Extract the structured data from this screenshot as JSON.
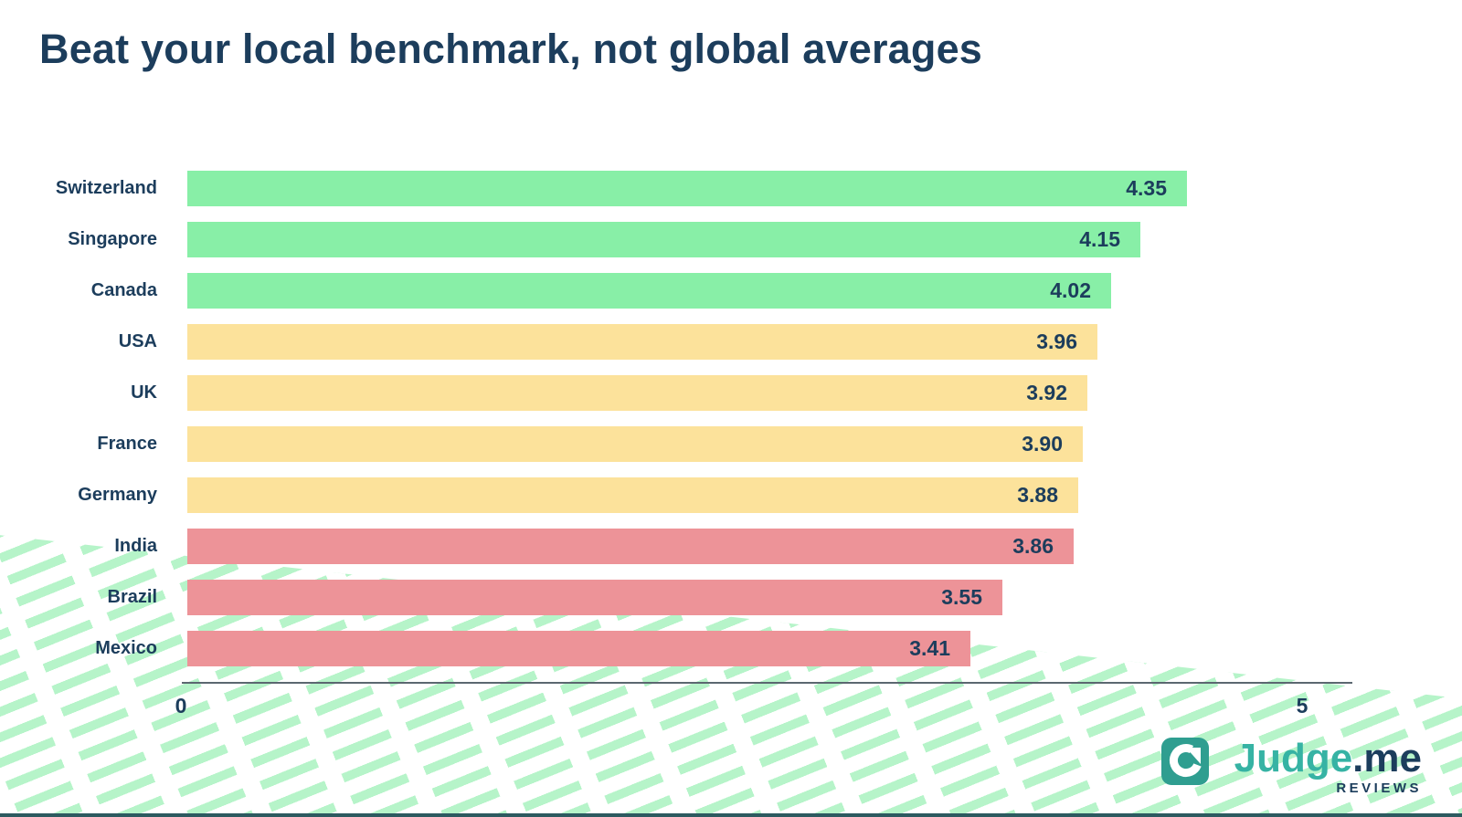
{
  "title": "Beat your local benchmark, not global averages",
  "chart_data": {
    "type": "bar",
    "orientation": "horizontal",
    "title": "Beat your local benchmark, not global averages",
    "categories": [
      "Switzerland",
      "Singapore",
      "Canada",
      "USA",
      "UK",
      "France",
      "Germany",
      "India",
      "Brazil",
      "Mexico"
    ],
    "values": [
      4.35,
      4.15,
      4.02,
      3.96,
      3.92,
      3.9,
      3.88,
      3.86,
      3.55,
      3.41
    ],
    "value_labels": [
      "4.35",
      "4.15",
      "4.02",
      "3.96",
      "3.92",
      "3.90",
      "3.88",
      "3.86",
      "3.55",
      "3.41"
    ],
    "bar_color_keys": [
      "green",
      "green",
      "green",
      "yellow",
      "yellow",
      "yellow",
      "yellow",
      "red",
      "red",
      "red"
    ],
    "xlabel": "",
    "ylabel": "",
    "xlim": [
      0,
      5
    ],
    "x_ticks": [
      "0",
      "5"
    ],
    "grid": false,
    "legend": null
  },
  "colors": {
    "green": "#88efa7",
    "yellow": "#fce29b",
    "red": "#ed9398",
    "navy": "#1c3d5c",
    "axis": "#5b6770",
    "stripe_mint": "#b6f4c9",
    "logo_teal_icon": "#2f9e90",
    "logo_teal_text": "#36b3a4"
  },
  "axis": {
    "tick_zero": "0",
    "tick_max": "5"
  },
  "logo": {
    "brand": "Judge",
    "suffix": ".me",
    "tagline": "REVIEWS"
  }
}
